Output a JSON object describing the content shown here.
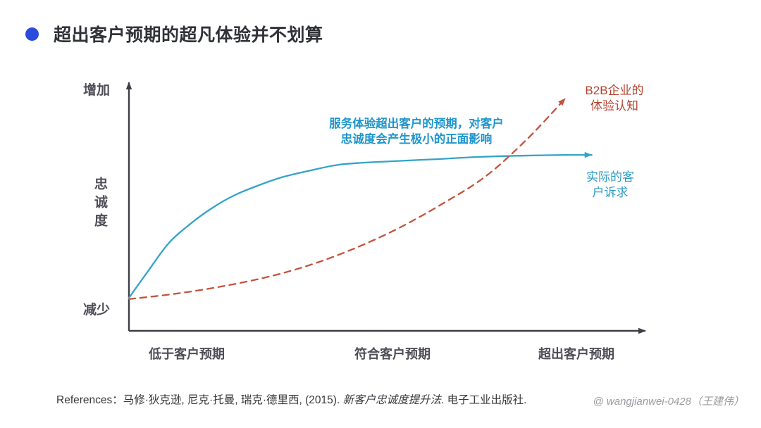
{
  "header": {
    "bullet_color": "#2B4BDF",
    "title": "超出客户预期的超凡体验并不划算"
  },
  "chart_data": {
    "type": "line",
    "title": "超出客户预期的超凡体验并不划算",
    "grid": false,
    "legend": "inline-labels",
    "axis_color": "#3E3E48",
    "x_axis": {
      "type": "category",
      "labels": [
        "低于客户预期",
        "符合客户预期",
        "超出客户预期"
      ]
    },
    "y_axis": {
      "axis_label": "忠诚度",
      "top_label": "增加",
      "bottom_label": "减少",
      "range_normalized": [
        0,
        1
      ]
    },
    "annotation": {
      "text": "服务体验超出客户的预期，对客户\n忠诚度会产生极小的正面影响",
      "color": "#1E96CC"
    },
    "series": [
      {
        "name": "实际的客户诉求",
        "label_lines": "实际的客\n户诉求",
        "color": "#34A3C8",
        "label_color": "#2E9BC4",
        "line_style": "solid",
        "arrow_end": true,
        "points_normalized": [
          [
            0,
            0.134
          ],
          [
            0.037,
            0.243
          ],
          [
            0.077,
            0.357
          ],
          [
            0.118,
            0.434
          ],
          [
            0.159,
            0.497
          ],
          [
            0.199,
            0.546
          ],
          [
            0.24,
            0.583
          ],
          [
            0.294,
            0.623
          ],
          [
            0.349,
            0.651
          ],
          [
            0.403,
            0.674
          ],
          [
            0.457,
            0.683
          ],
          [
            0.512,
            0.689
          ],
          [
            0.593,
            0.697
          ],
          [
            0.674,
            0.706
          ],
          [
            0.756,
            0.711
          ],
          [
            0.837,
            0.714
          ],
          [
            0.891,
            0.714
          ]
        ]
      },
      {
        "name": "B2B企业的体验认知",
        "label_lines": "B2B企业的\n体验认知",
        "color": "#C4523C",
        "label_color": "#B5432F",
        "line_style": "dashed",
        "arrow_end": true,
        "points_normalized": [
          [
            0,
            0.129
          ],
          [
            0.091,
            0.151
          ],
          [
            0.186,
            0.183
          ],
          [
            0.281,
            0.226
          ],
          [
            0.362,
            0.277
          ],
          [
            0.444,
            0.343
          ],
          [
            0.525,
            0.423
          ],
          [
            0.607,
            0.52
          ],
          [
            0.688,
            0.629
          ],
          [
            0.769,
            0.783
          ],
          [
            0.84,
            0.943
          ]
        ]
      }
    ]
  },
  "footer": {
    "references_prefix": "References：马修·狄克逊, 尼克·托曼, 瑞克·德里西, (2015). ",
    "references_book_title": "新客户忠诚度提升法",
    "references_suffix": ". 电子工业出版社.",
    "watermark": "@ wangjianwei-0428（王建伟）"
  }
}
